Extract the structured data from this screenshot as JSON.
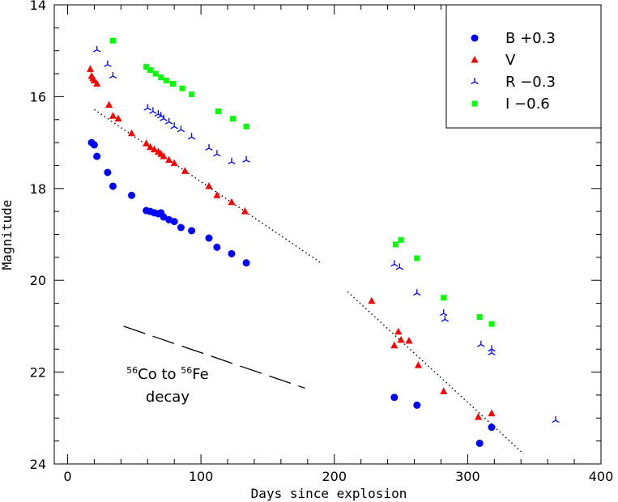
{
  "chart_data": {
    "type": "scatter",
    "xlabel": "Days since explosion",
    "ylabel": "Magnitude",
    "xlim": [
      -10,
      400
    ],
    "ylim": [
      24,
      14
    ],
    "y_inverted": true,
    "xticks": [
      0,
      100,
      200,
      300,
      400
    ],
    "yticks": [
      14,
      16,
      18,
      20,
      22,
      24
    ],
    "legend_position": "top-right",
    "series": [
      {
        "name": "B +0.3",
        "color": "#0000ff",
        "marker": "circle",
        "points": [
          [
            18,
            17.0
          ],
          [
            20,
            17.05
          ],
          [
            22,
            17.3
          ],
          [
            30,
            17.65
          ],
          [
            34,
            17.95
          ],
          [
            48,
            18.15
          ],
          [
            59,
            18.48
          ],
          [
            62,
            18.5
          ],
          [
            65,
            18.53
          ],
          [
            68,
            18.55
          ],
          [
            70,
            18.53
          ],
          [
            72,
            18.62
          ],
          [
            76,
            18.68
          ],
          [
            80,
            18.72
          ],
          [
            85,
            18.85
          ],
          [
            93,
            18.92
          ],
          [
            106,
            19.08
          ],
          [
            112,
            19.28
          ],
          [
            123,
            19.42
          ],
          [
            134,
            19.62
          ],
          [
            245,
            22.55
          ],
          [
            262,
            22.72
          ],
          [
            309,
            23.55
          ],
          [
            318,
            23.2
          ]
        ]
      },
      {
        "name": "V",
        "color": "#ff0000",
        "marker": "triangle",
        "points": [
          [
            17,
            15.4
          ],
          [
            18,
            15.55
          ],
          [
            19,
            15.6
          ],
          [
            20,
            15.65
          ],
          [
            22,
            15.72
          ],
          [
            31,
            16.18
          ],
          [
            34,
            16.42
          ],
          [
            38,
            16.48
          ],
          [
            48,
            16.8
          ],
          [
            59,
            17.02
          ],
          [
            62,
            17.1
          ],
          [
            65,
            17.15
          ],
          [
            68,
            17.2
          ],
          [
            70,
            17.25
          ],
          [
            72,
            17.3
          ],
          [
            76,
            17.38
          ],
          [
            80,
            17.45
          ],
          [
            88,
            17.62
          ],
          [
            106,
            17.95
          ],
          [
            112,
            18.15
          ],
          [
            123,
            18.3
          ],
          [
            133,
            18.5
          ],
          [
            228,
            20.45
          ],
          [
            245,
            21.42
          ],
          [
            248,
            21.12
          ],
          [
            250,
            21.3
          ],
          [
            256,
            21.32
          ],
          [
            263,
            21.85
          ],
          [
            282,
            22.42
          ],
          [
            308,
            22.98
          ],
          [
            318,
            22.9
          ]
        ]
      },
      {
        "name": "R −0.3",
        "color": "#0000ff",
        "marker": "tripod",
        "points": [
          [
            22,
            14.98
          ],
          [
            30,
            15.3
          ],
          [
            34,
            15.55
          ],
          [
            60,
            16.25
          ],
          [
            64,
            16.32
          ],
          [
            68,
            16.38
          ],
          [
            70,
            16.42
          ],
          [
            72,
            16.48
          ],
          [
            76,
            16.55
          ],
          [
            80,
            16.65
          ],
          [
            85,
            16.72
          ],
          [
            93,
            16.88
          ],
          [
            106,
            17.12
          ],
          [
            112,
            17.25
          ],
          [
            123,
            17.42
          ],
          [
            134,
            17.38
          ],
          [
            245,
            19.65
          ],
          [
            249,
            19.72
          ],
          [
            262,
            20.28
          ],
          [
            282,
            20.72
          ],
          [
            283,
            20.85
          ],
          [
            310,
            21.4
          ],
          [
            318,
            21.5
          ],
          [
            318,
            21.58
          ],
          [
            366,
            23.05
          ]
        ]
      },
      {
        "name": "I −0.6",
        "color": "#00ff00",
        "marker": "square",
        "points": [
          [
            34,
            14.78
          ],
          [
            59,
            15.35
          ],
          [
            62,
            15.42
          ],
          [
            66,
            15.5
          ],
          [
            70,
            15.58
          ],
          [
            74,
            15.65
          ],
          [
            79,
            15.72
          ],
          [
            86,
            15.82
          ],
          [
            93,
            15.95
          ],
          [
            113,
            16.32
          ],
          [
            124,
            16.48
          ],
          [
            134,
            16.65
          ],
          [
            246,
            19.22
          ],
          [
            250,
            19.12
          ],
          [
            262,
            19.52
          ],
          [
            282,
            20.38
          ],
          [
            309,
            20.8
          ],
          [
            318,
            20.95
          ]
        ]
      }
    ],
    "fit_lines": [
      {
        "x": [
          20,
          190
        ],
        "y": [
          16.28,
          19.62
        ]
      },
      {
        "x": [
          210,
          342
        ],
        "y": [
          20.25,
          23.78
        ]
      }
    ],
    "decay_reference_line": {
      "x": [
        42,
        178
      ],
      "y": [
        21.0,
        22.35
      ]
    },
    "annotation": {
      "line1_sup1": "56",
      "line1_text1": "Co to ",
      "line1_sup2": "56",
      "line1_text2": "Fe",
      "line2": "decay",
      "x": 75,
      "y": 22.15
    }
  }
}
